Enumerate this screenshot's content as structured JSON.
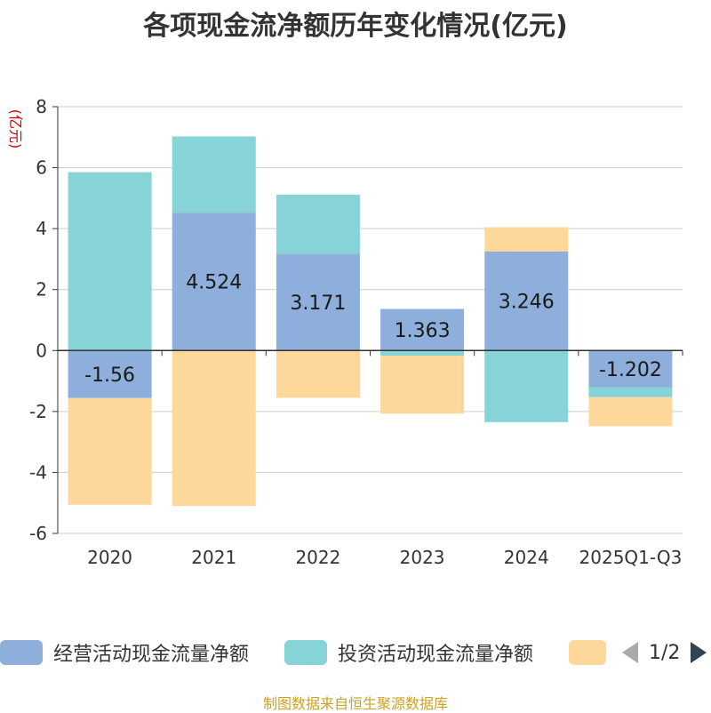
{
  "chart_data": {
    "type": "bar",
    "stacked": true,
    "title": "各项现金流净额历年变化情况(亿元)",
    "ylabel": "(亿元)",
    "xlabel": "",
    "ylim": [
      -6,
      8
    ],
    "yticks": [
      -6,
      -4,
      -2,
      0,
      2,
      4,
      6,
      8
    ],
    "categories": [
      "2020",
      "2021",
      "2022",
      "2023",
      "2024",
      "2025Q1-Q3"
    ],
    "series": [
      {
        "name": "经营活动现金流量净额",
        "color": "#8eaedb",
        "values": [
          -1.56,
          4.524,
          3.171,
          1.363,
          3.246,
          -1.202
        ],
        "labels": [
          "-1.56",
          "4.524",
          "3.171",
          "1.363",
          "3.246",
          "-1.202"
        ]
      },
      {
        "name": "投资活动现金流量净额",
        "color": "#86d4d8",
        "values": [
          5.85,
          2.5,
          1.94,
          -0.17,
          -2.35,
          -0.33
        ]
      },
      {
        "name": "",
        "color": "#fdd89a",
        "values": [
          -3.5,
          -5.1,
          -1.55,
          -1.9,
          0.8,
          -0.95
        ]
      }
    ]
  },
  "legend": {
    "items": [
      {
        "label": "经营活动现金流量净额",
        "color": "#8eaedb"
      },
      {
        "label": "投资活动现金流量净额",
        "color": "#86d4d8"
      },
      {
        "label": "",
        "color": "#fdd89a"
      }
    ],
    "page_text": "1/2"
  },
  "source": "制图数据来自恒生聚源数据库"
}
